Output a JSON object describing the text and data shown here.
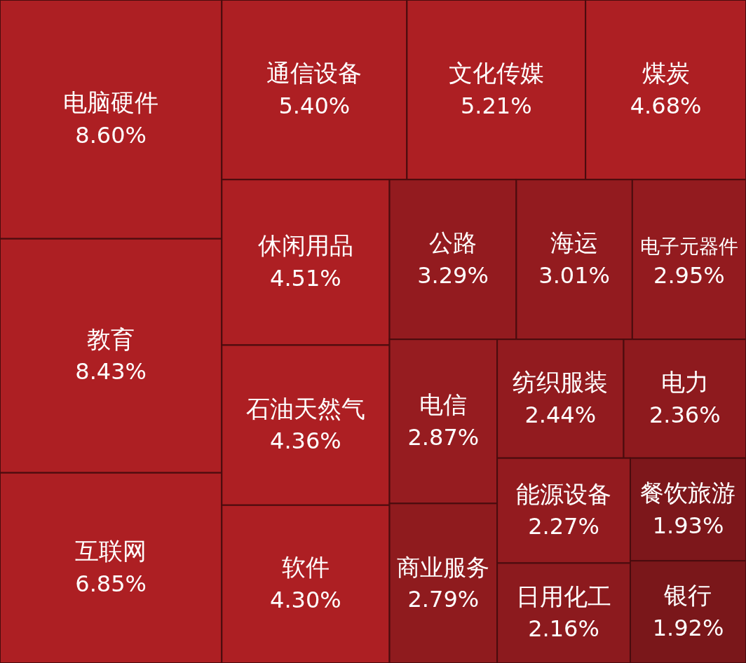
{
  "chart_data": {
    "type": "other",
    "categories": [
      "电脑硬件",
      "教育",
      "互联网",
      "通信设备",
      "文化传媒",
      "煤炭",
      "休闲用品",
      "石油天然气",
      "软件",
      "公路",
      "海运",
      "电子元器件",
      "电信",
      "商业服务",
      "纺织服装",
      "电力",
      "能源设备",
      "日用化工",
      "餐饮旅游",
      "银行"
    ],
    "values": [
      8.6,
      8.43,
      6.85,
      5.4,
      5.21,
      4.68,
      4.51,
      4.36,
      4.3,
      3.29,
      3.01,
      2.95,
      2.87,
      2.79,
      2.44,
      2.36,
      2.27,
      2.16,
      1.93,
      1.92
    ],
    "value_labels": [
      "8.60%",
      "8.43%",
      "6.85%",
      "5.40%",
      "5.21%",
      "4.68%",
      "4.51%",
      "4.36%",
      "4.30%",
      "3.29%",
      "3.01%",
      "2.95%",
      "2.87%",
      "2.79%",
      "2.44%",
      "2.36%",
      "2.27%",
      "2.16%",
      "1.93%",
      "1.92%"
    ],
    "colors": [
      "#ad1f23",
      "#ad1f23",
      "#ad1f23",
      "#ad1f23",
      "#ad1f23",
      "#ad1f23",
      "#ad1f23",
      "#ad1f23",
      "#ad1f23",
      "#931b1f",
      "#931b1f",
      "#931b1f",
      "#961c20",
      "#8f1b1e",
      "#921b1f",
      "#8e1a1e",
      "#931b1f",
      "#8c1a1e",
      "#7d171b",
      "#7a171a"
    ]
  }
}
